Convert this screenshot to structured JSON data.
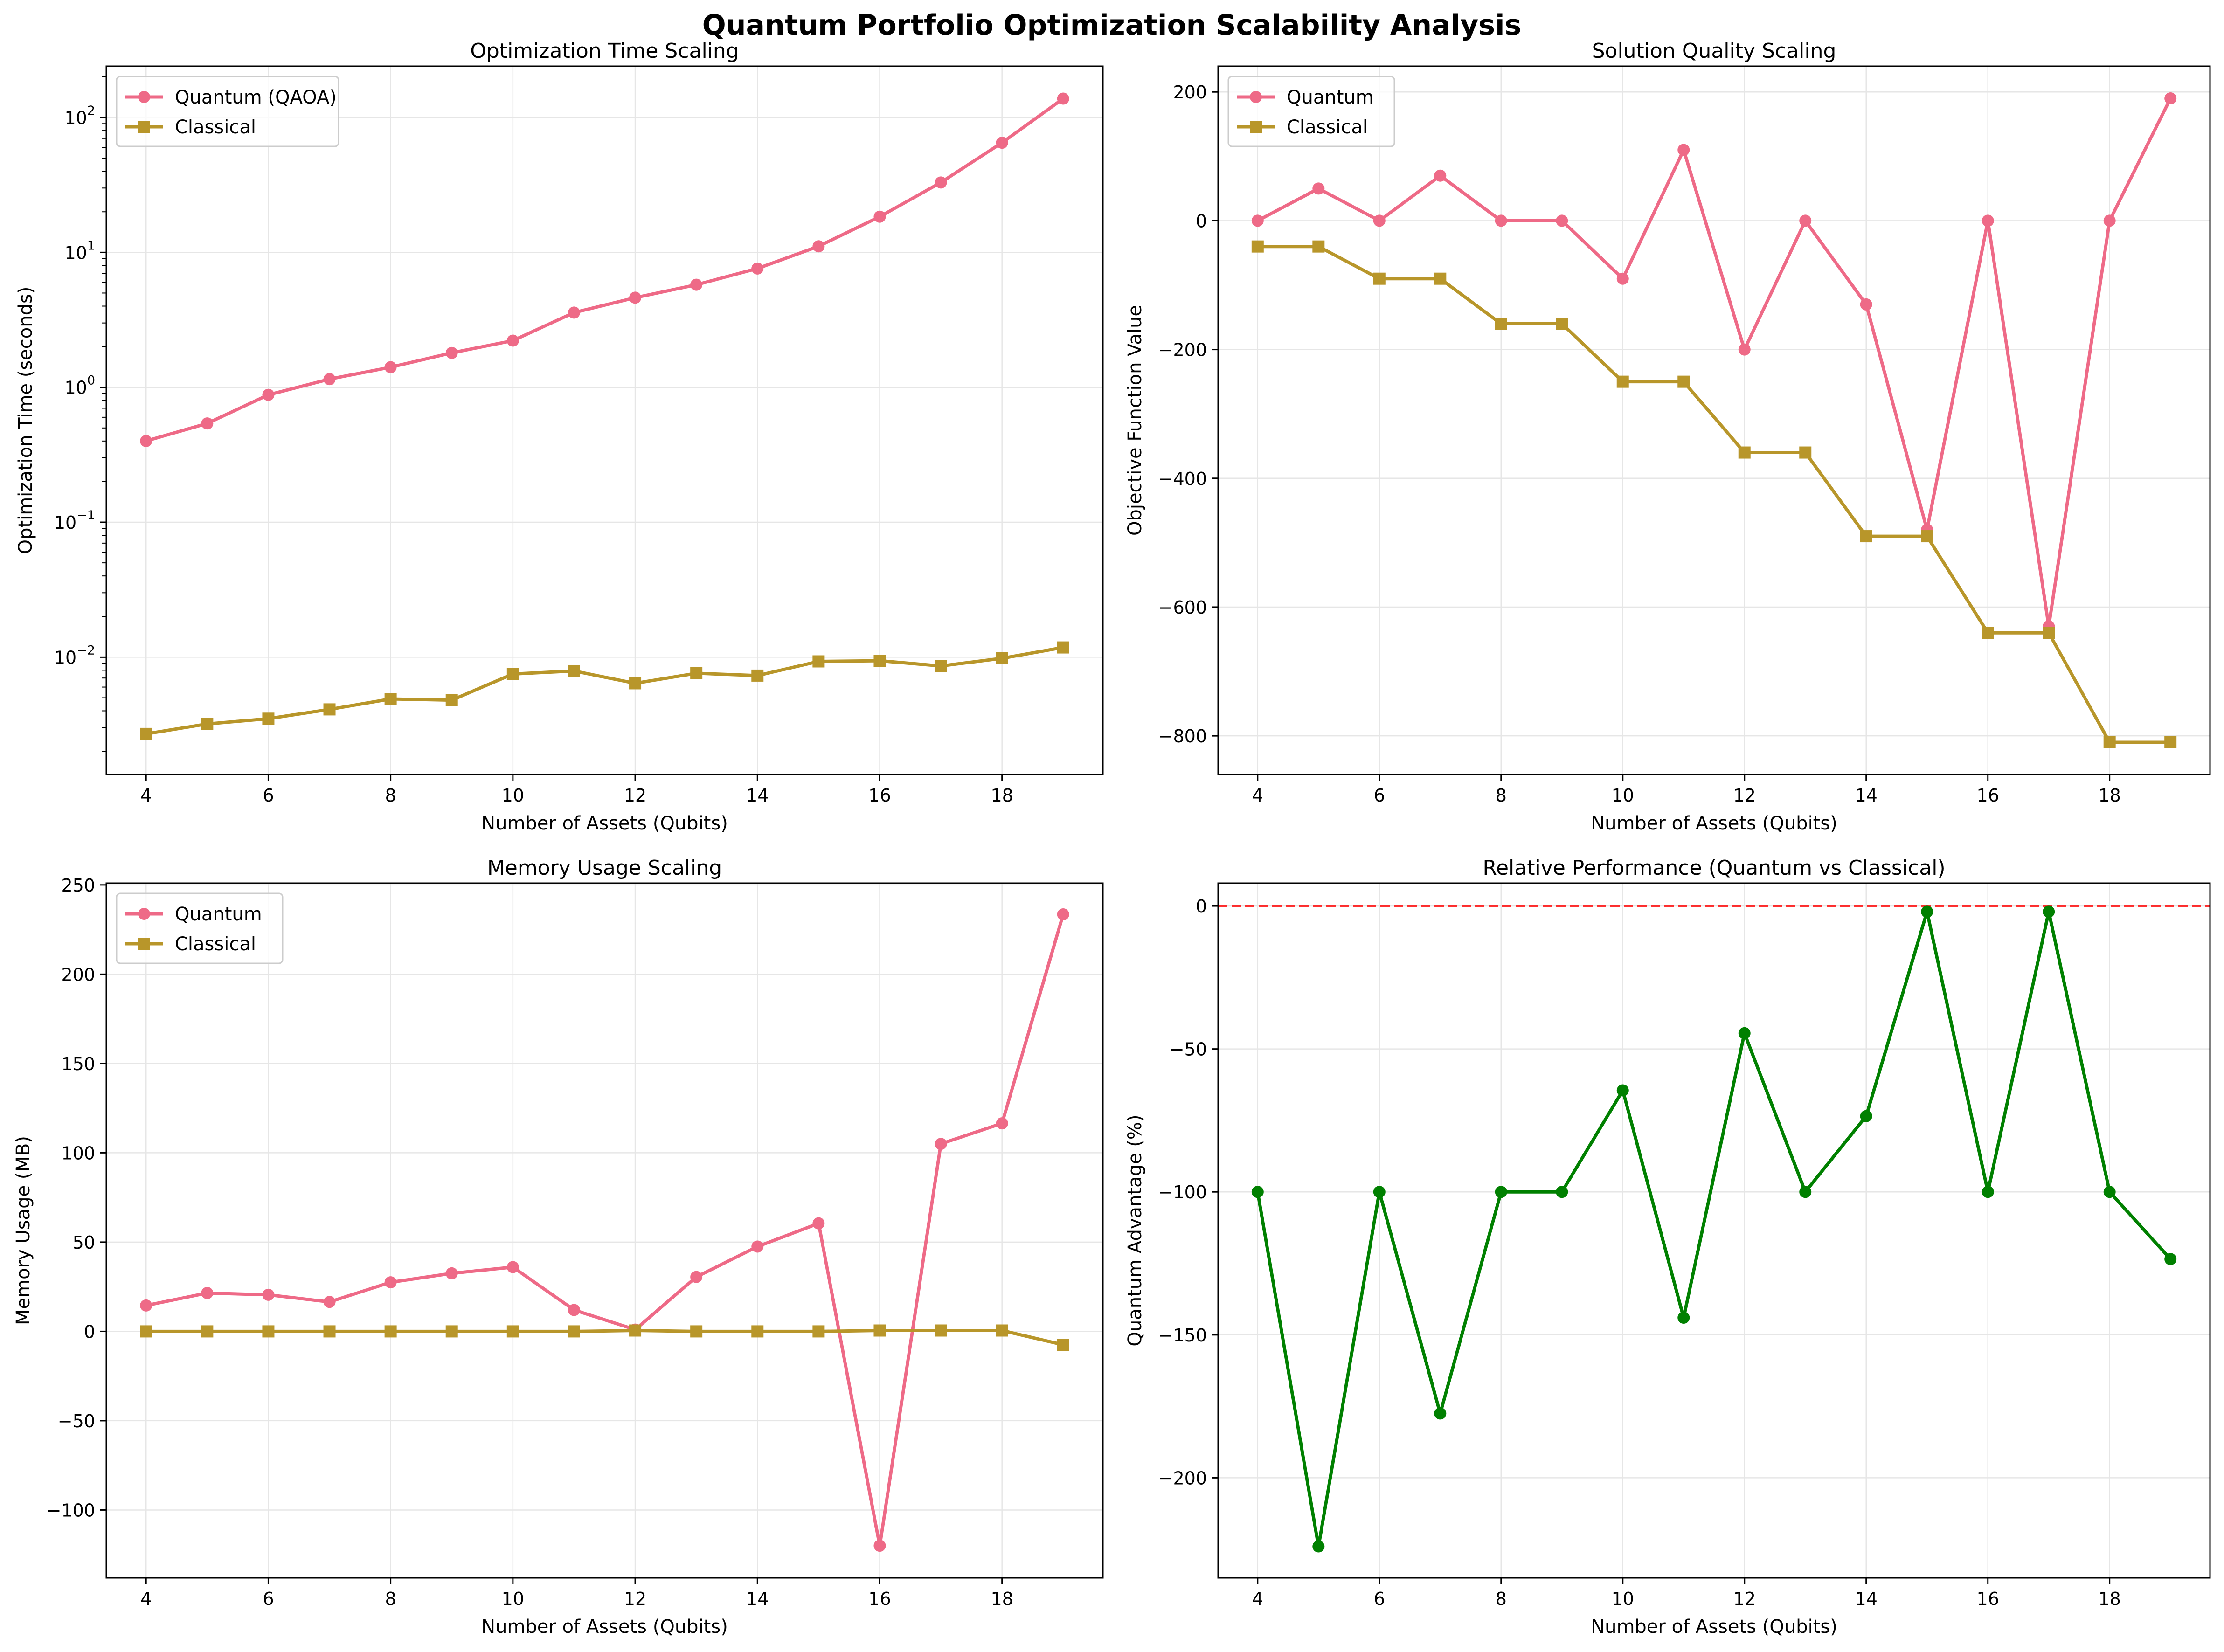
{
  "suptitle": "Quantum Portfolio Optimization Scalability Analysis",
  "colors": {
    "quantum": "#ee6a87",
    "classical": "#b8962a",
    "advantage": "#008000",
    "reference": "#ff0000",
    "grid": "#e6e6e6"
  },
  "chart_data": [
    {
      "id": "time",
      "type": "line",
      "title": "Optimization Time Scaling",
      "xlabel": "Number of Assets (Qubits)",
      "ylabel": "Optimization Time (seconds)",
      "yscale": "log",
      "xlim": [
        3.35,
        19.65
      ],
      "ylim": [
        0.00135,
        240
      ],
      "xticks": [
        4,
        6,
        8,
        10,
        12,
        14,
        16,
        18
      ],
      "yticks": [
        0.01,
        0.1,
        1,
        10,
        100
      ],
      "ytick_labels": [
        [
          "10",
          "−2"
        ],
        [
          "10",
          "−1"
        ],
        [
          "10",
          "0"
        ],
        [
          "10",
          "1"
        ],
        [
          "10",
          "2"
        ]
      ],
      "grid": true,
      "legend_position": "upper-left",
      "x": [
        4,
        5,
        6,
        7,
        8,
        9,
        10,
        11,
        12,
        13,
        14,
        15,
        16,
        17,
        18,
        19
      ],
      "series": [
        {
          "name": "Quantum (QAOA)",
          "marker": "circle",
          "color_key": "quantum",
          "values": [
            0.4,
            0.54,
            0.88,
            1.15,
            1.41,
            1.8,
            2.22,
            3.58,
            4.62,
            5.76,
            7.6,
            11.1,
            18.4,
            33.0,
            65.0,
            138.0
          ]
        },
        {
          "name": "Classical",
          "marker": "square",
          "color_key": "classical",
          "values": [
            0.0027,
            0.0032,
            0.0035,
            0.0041,
            0.0049,
            0.0048,
            0.0075,
            0.0079,
            0.0064,
            0.0076,
            0.0073,
            0.0093,
            0.0094,
            0.0086,
            0.0098,
            0.0118
          ]
        }
      ]
    },
    {
      "id": "quality",
      "type": "line",
      "title": "Solution Quality Scaling",
      "xlabel": "Number of Assets (Qubits)",
      "ylabel": "Objective Function Value",
      "yscale": "linear",
      "xlim": [
        3.35,
        19.65
      ],
      "ylim": [
        -860,
        240
      ],
      "xticks": [
        4,
        6,
        8,
        10,
        12,
        14,
        16,
        18
      ],
      "yticks": [
        -800,
        -600,
        -400,
        -200,
        0,
        200
      ],
      "ytick_labels": [
        "−800",
        "−600",
        "−400",
        "−200",
        "0",
        "200"
      ],
      "grid": true,
      "legend_position": "upper-left",
      "x": [
        4,
        5,
        6,
        7,
        8,
        9,
        10,
        11,
        12,
        13,
        14,
        15,
        16,
        17,
        18,
        19
      ],
      "series": [
        {
          "name": "Quantum",
          "marker": "circle",
          "color_key": "quantum",
          "values": [
            0,
            50,
            0,
            70,
            0,
            0,
            -90,
            110,
            -200,
            0,
            -130,
            -480,
            0,
            -630,
            0,
            190
          ]
        },
        {
          "name": "Classical",
          "marker": "square",
          "color_key": "classical",
          "values": [
            -40,
            -40,
            -90,
            -90,
            -160,
            -160,
            -250,
            -250,
            -360,
            -360,
            -490,
            -490,
            -640,
            -640,
            -810,
            -810
          ]
        }
      ]
    },
    {
      "id": "memory",
      "type": "line",
      "title": "Memory Usage Scaling",
      "xlabel": "Number of Assets (Qubits)",
      "ylabel": "Memory Usage (MB)",
      "yscale": "linear",
      "xlim": [
        3.35,
        19.65
      ],
      "ylim": [
        -138,
        251
      ],
      "xticks": [
        4,
        6,
        8,
        10,
        12,
        14,
        16,
        18
      ],
      "yticks": [
        -100,
        -50,
        0,
        50,
        100,
        150,
        200,
        250
      ],
      "ytick_labels": [
        "−100",
        "−50",
        "0",
        "50",
        "100",
        "150",
        "200",
        "250"
      ],
      "grid": true,
      "legend_position": "upper-left",
      "x": [
        4,
        5,
        6,
        7,
        8,
        9,
        10,
        11,
        12,
        13,
        14,
        15,
        16,
        17,
        18,
        19
      ],
      "series": [
        {
          "name": "Quantum",
          "marker": "circle",
          "color_key": "quantum",
          "values": [
            14.5,
            21.5,
            20.5,
            16.5,
            27.5,
            32.5,
            36,
            12,
            1,
            30.5,
            47.5,
            60.5,
            -120,
            105,
            116.5,
            233.5
          ]
        },
        {
          "name": "Classical",
          "marker": "square",
          "color_key": "classical",
          "values": [
            0,
            0,
            0,
            0,
            0,
            0,
            0,
            0,
            0.5,
            0,
            0,
            0,
            0.5,
            0.5,
            0.5,
            -7.5
          ]
        }
      ]
    },
    {
      "id": "advantage",
      "type": "line",
      "title": "Relative Performance (Quantum vs Classical)",
      "xlabel": "Number of Assets (Qubits)",
      "ylabel": "Quantum Advantage (%)",
      "yscale": "linear",
      "xlim": [
        3.35,
        19.65
      ],
      "ylim": [
        -235,
        8
      ],
      "xticks": [
        4,
        6,
        8,
        10,
        12,
        14,
        16,
        18
      ],
      "yticks": [
        -200,
        -150,
        -100,
        -50,
        0
      ],
      "ytick_labels": [
        "−200",
        "−150",
        "−100",
        "−50",
        "0"
      ],
      "grid": true,
      "legend_position": "none",
      "reference_line_y": 0,
      "x": [
        4,
        5,
        6,
        7,
        8,
        9,
        10,
        11,
        12,
        13,
        14,
        15,
        16,
        17,
        18,
        19
      ],
      "series": [
        {
          "marker": "circle",
          "color_key": "advantage",
          "values": [
            -100,
            -224,
            -100,
            -177.5,
            -100,
            -100,
            -64.5,
            -144,
            -44.5,
            -100,
            -73.5,
            -2,
            -100,
            -2,
            -100,
            -123.5
          ]
        }
      ]
    }
  ]
}
